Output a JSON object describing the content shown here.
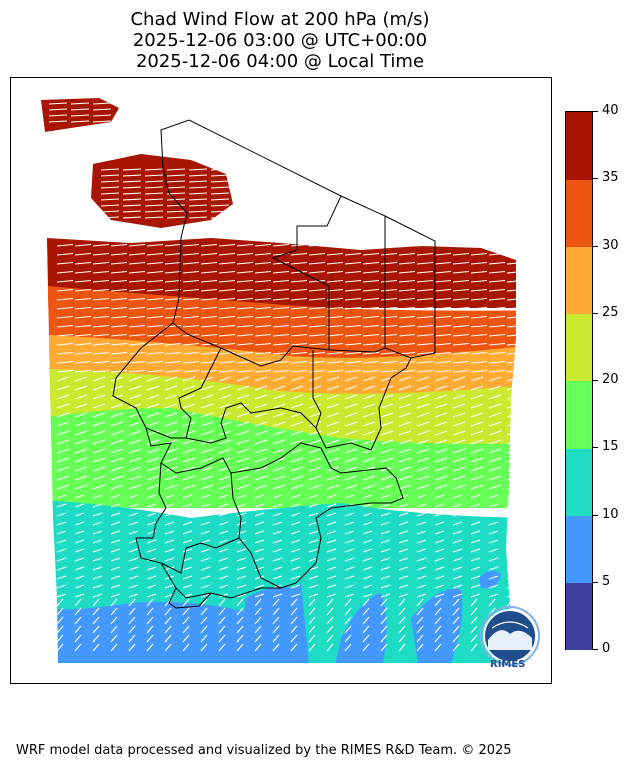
{
  "title": {
    "line1": "Chad Wind Flow at 200 hPa (m/s)",
    "line2": "2025-12-06 03:00 @ UTC+00:00",
    "line3": "2025-12-06 04:00 @ Local Time"
  },
  "colorbar": {
    "ticks": [
      "0",
      "5",
      "10",
      "15",
      "20",
      "25",
      "30",
      "35",
      "40"
    ],
    "colors": [
      "#3f3f9f",
      "#4499ff",
      "#1edcc3",
      "#66ff55",
      "#cbe92f",
      "#ffaa33",
      "#ee5511",
      "#a81500"
    ]
  },
  "logo": {
    "text": "RIMES"
  },
  "footer": "WRF model data processed and visualized by the RIMES R&D Team. © 2025"
}
